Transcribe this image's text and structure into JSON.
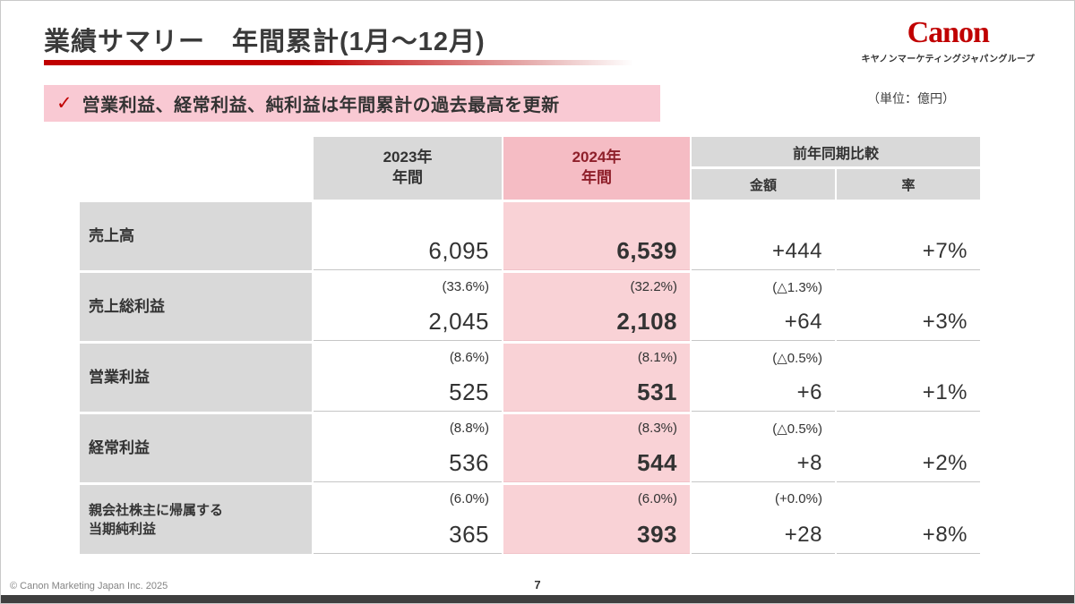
{
  "header": {
    "title": "業績サマリー　年間累計(1月～12月)",
    "logo": {
      "brand": "Canon",
      "subtitle": "キヤノンマーケティングジャパングループ"
    }
  },
  "highlight": {
    "check": "✓",
    "text": "営業利益、経常利益、純利益は年間累計の過去最高を更新"
  },
  "unit_note": "（単位：億円）",
  "table": {
    "headers": {
      "y2023_line1": "2023年",
      "y2023_line2": "年間",
      "y2024_line1": "2024年",
      "y2024_line2": "年間",
      "comparison": "前年同期比較",
      "amount": "金額",
      "rate": "率"
    },
    "rows": [
      {
        "label": "売上高",
        "y2023_pct": "",
        "y2023_value": "6,095",
        "y2024_pct": "",
        "y2024_value": "6,539",
        "diff_pct": "",
        "diff_value": "+444",
        "rate_value": "+7%"
      },
      {
        "label": "売上総利益",
        "y2023_pct": "(33.6%)",
        "y2023_value": "2,045",
        "y2024_pct": "(32.2%)",
        "y2024_value": "2,108",
        "diff_pct": "(△1.3%)",
        "diff_value": "+64",
        "rate_value": "+3%"
      },
      {
        "label": "営業利益",
        "y2023_pct": "(8.6%)",
        "y2023_value": "525",
        "y2024_pct": "(8.1%)",
        "y2024_value": "531",
        "diff_pct": "(△0.5%)",
        "diff_value": "+6",
        "rate_value": "+1%"
      },
      {
        "label": "経常利益",
        "y2023_pct": "(8.8%)",
        "y2023_value": "536",
        "y2024_pct": "(8.3%)",
        "y2024_value": "544",
        "diff_pct": "(△0.5%)",
        "diff_value": "+8",
        "rate_value": "+2%"
      },
      {
        "label": "親会社株主に帰属する\n当期純利益",
        "y2023_pct": "(6.0%)",
        "y2023_value": "365",
        "y2024_pct": "(6.0%)",
        "y2024_value": "393",
        "diff_pct": "(+0.0%)",
        "diff_value": "+28",
        "rate_value": "+8%"
      }
    ]
  },
  "footer": {
    "copyright": "© Canon Marketing Japan Inc. 2025",
    "page": "7"
  },
  "colors": {
    "accent_red": "#c00000",
    "pink_banner": "#f9c9d3",
    "pink_header": "#f5bcc4",
    "pink_cell": "#f9d2d6",
    "gray_cell": "#d9d9d9"
  }
}
